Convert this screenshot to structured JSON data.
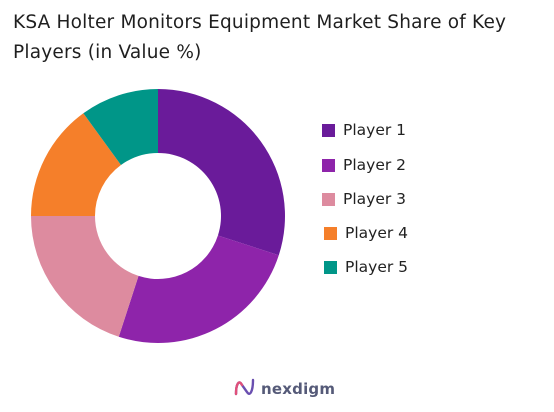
{
  "chart_data": {
    "type": "pie",
    "title": "KSA Holter Monitors Equipment Market Share of Key Players (in Value %)",
    "donut": true,
    "categories": [
      "Player 1",
      "Player 2",
      "Player 3",
      "Player 4",
      "Player 5"
    ],
    "values": [
      30,
      25,
      20,
      15,
      10
    ],
    "colors": [
      "#6a1b9a",
      "#8e24aa",
      "#dd8b9f",
      "#f57f2a",
      "#009688"
    ],
    "legend_position": "right"
  },
  "brand": {
    "name": "nexdigm"
  }
}
